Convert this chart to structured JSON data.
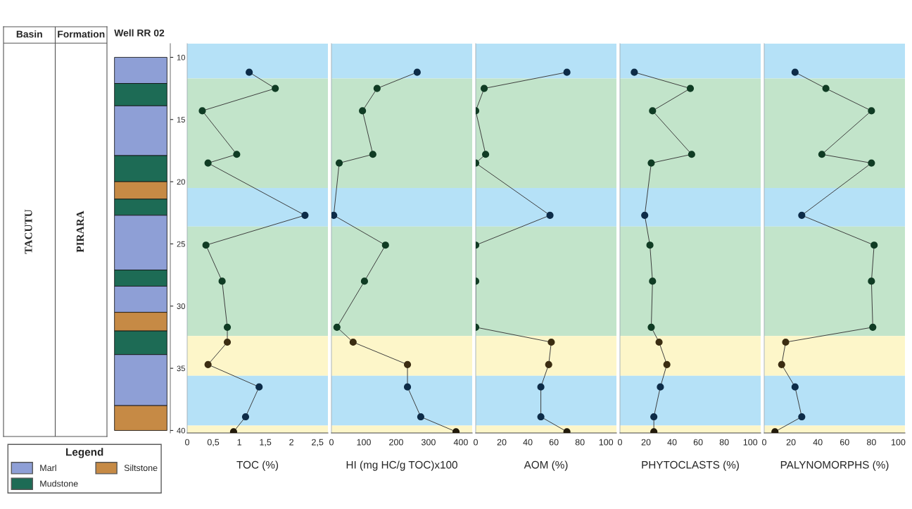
{
  "chart_data": [
    {
      "type": "other",
      "annotations": [
        "Basin",
        "Formation",
        "TACUTU",
        "PIRARA"
      ]
    },
    {
      "type": "bar",
      "title": "Well RR 02",
      "categories": [
        null
      ],
      "ylim": [
        40.2,
        8.9
      ],
      "yticks": [
        10,
        15,
        20,
        25,
        30,
        35,
        40
      ],
      "tick_labels": "y",
      "legend": "bottom",
      "legend_title": "Legend",
      "series": [
        {
          "name": "Marl",
          "color": "#8e9fd6",
          "base": [
            10
          ],
          "values": [
            2.1
          ]
        },
        {
          "name": "Mudstone",
          "color": "#1d6b55",
          "base": [
            12.1
          ],
          "values": [
            1.8
          ]
        },
        {
          "color": "#8e9fd6",
          "base": [
            13.9
          ],
          "values": [
            4.0
          ]
        },
        {
          "color": "#1d6b55",
          "base": [
            17.9
          ],
          "values": [
            2.1
          ]
        },
        {
          "name": "Siltstone",
          "color": "#c68a45",
          "base": [
            20.0
          ],
          "values": [
            1.4
          ]
        },
        {
          "color": "#1d6b55",
          "base": [
            21.4
          ],
          "values": [
            1.3
          ]
        },
        {
          "color": "#8e9fd6",
          "base": [
            22.7
          ],
          "values": [
            4.4
          ]
        },
        {
          "color": "#1d6b55",
          "base": [
            27.1
          ],
          "values": [
            1.3
          ]
        },
        {
          "color": "#8e9fd6",
          "base": [
            28.4
          ],
          "values": [
            2.1
          ]
        },
        {
          "color": "#c68a45",
          "base": [
            30.5
          ],
          "values": [
            1.5
          ]
        },
        {
          "color": "#1d6b55",
          "base": [
            32.0
          ],
          "values": [
            1.9
          ]
        },
        {
          "color": "#8e9fd6",
          "base": [
            33.9
          ],
          "values": [
            4.1
          ]
        },
        {
          "color": "#c68a45",
          "base": [
            38.0
          ],
          "values": [
            2.0
          ]
        }
      ]
    },
    {
      "type": "line",
      "orientation": "horizontal",
      "xlabel": "TOC (%)",
      "xlim": [
        0,
        2.7
      ],
      "xticks": [
        0,
        {
          "value": 0.5,
          "label": "0,5"
        },
        1,
        {
          "value": 1.5,
          "label": "1,5"
        },
        2,
        {
          "value": 2.5,
          "label": "2,5"
        }
      ],
      "ylim": [
        40.2,
        8.9
      ],
      "tick_labels": "x",
      "marker": "circle",
      "line_style": "solid",
      "bands": [
        {
          "axis": "y",
          "from": 8.9,
          "to": 11.7,
          "color": "#b5e1f7"
        },
        {
          "axis": "y",
          "from": 11.7,
          "to": 20.5,
          "color": "#c2e4ca"
        },
        {
          "axis": "y",
          "from": 20.5,
          "to": 23.6,
          "color": "#b5e1f7"
        },
        {
          "axis": "y",
          "from": 23.6,
          "to": 32.4,
          "color": "#c2e4ca"
        },
        {
          "axis": "y",
          "from": 32.4,
          "to": 35.6,
          "color": "#fdf6c9"
        },
        {
          "axis": "y",
          "from": 35.6,
          "to": 39.6,
          "color": "#b5e1f7"
        },
        {
          "axis": "y",
          "from": 39.6,
          "to": 40.2,
          "color": "#fdf6c9"
        }
      ],
      "series": [
        {
          "color": "#3a3a3a",
          "colors": [
            "#0d2c48",
            "#103c24",
            "#103c24",
            "#103c24",
            "#103c24",
            "#0d2c48",
            "#103c24",
            "#103c24",
            "#103c24",
            "#3b2d12",
            "#3b2d12",
            "#0d2c48",
            "#0d2c48",
            "#221a0a"
          ],
          "x": [
            11.2,
            12.5,
            14.3,
            17.8,
            18.5,
            22.7,
            25.1,
            28.0,
            31.7,
            32.9,
            34.7,
            36.5,
            38.9,
            40.1
          ],
          "values": [
            1.19,
            1.69,
            0.29,
            0.95,
            0.4,
            2.26,
            0.36,
            0.67,
            0.77,
            0.77,
            0.4,
            1.38,
            1.12,
            0.89
          ]
        }
      ]
    },
    {
      "type": "line",
      "orientation": "horizontal",
      "xlabel": "HI (mg HC/g TOC)x100",
      "xlim": [
        0,
        435
      ],
      "xticks": [
        0,
        100,
        200,
        300,
        400
      ],
      "ylim": [
        40.2,
        8.9
      ],
      "tick_labels": "x",
      "marker": "circle",
      "line_style": "solid",
      "bands": [
        {
          "axis": "y",
          "from": 8.9,
          "to": 11.7,
          "color": "#b5e1f7"
        },
        {
          "axis": "y",
          "from": 11.7,
          "to": 20.5,
          "color": "#c2e4ca"
        },
        {
          "axis": "y",
          "from": 20.5,
          "to": 23.6,
          "color": "#b5e1f7"
        },
        {
          "axis": "y",
          "from": 23.6,
          "to": 32.4,
          "color": "#c2e4ca"
        },
        {
          "axis": "y",
          "from": 32.4,
          "to": 35.6,
          "color": "#fdf6c9"
        },
        {
          "axis": "y",
          "from": 35.6,
          "to": 39.6,
          "color": "#b5e1f7"
        },
        {
          "axis": "y",
          "from": 39.6,
          "to": 40.2,
          "color": "#fdf6c9"
        }
      ],
      "series": [
        {
          "color": "#3a3a3a",
          "colors": [
            "#0d2c48",
            "#103c24",
            "#103c24",
            "#103c24",
            "#103c24",
            "#0d2c48",
            "#103c24",
            "#103c24",
            "#103c24",
            "#3b2d12",
            "#3b2d12",
            "#0d2c48",
            "#0d2c48",
            "#221a0a"
          ],
          "x": [
            11.2,
            12.5,
            14.3,
            17.8,
            18.5,
            22.7,
            25.1,
            28.0,
            31.7,
            32.9,
            34.7,
            36.5,
            38.9,
            40.1
          ],
          "values": [
            265,
            141,
            96,
            128,
            24,
            7,
            167,
            102,
            17,
            67,
            235,
            235,
            276,
            385
          ]
        }
      ]
    },
    {
      "type": "line",
      "orientation": "horizontal",
      "xlabel": "AOM (%)",
      "xlim": [
        0,
        108
      ],
      "xticks": [
        0,
        20,
        40,
        60,
        80,
        100
      ],
      "ylim": [
        40.2,
        8.9
      ],
      "tick_labels": "x",
      "marker": "circle",
      "line_style": "solid",
      "bands": [
        {
          "axis": "y",
          "from": 8.9,
          "to": 11.7,
          "color": "#b5e1f7"
        },
        {
          "axis": "y",
          "from": 11.7,
          "to": 20.5,
          "color": "#c2e4ca"
        },
        {
          "axis": "y",
          "from": 20.5,
          "to": 23.6,
          "color": "#b5e1f7"
        },
        {
          "axis": "y",
          "from": 23.6,
          "to": 32.4,
          "color": "#c2e4ca"
        },
        {
          "axis": "y",
          "from": 32.4,
          "to": 35.6,
          "color": "#fdf6c9"
        },
        {
          "axis": "y",
          "from": 35.6,
          "to": 39.6,
          "color": "#b5e1f7"
        },
        {
          "axis": "y",
          "from": 39.6,
          "to": 40.2,
          "color": "#fdf6c9"
        }
      ],
      "series": [
        {
          "color": "#3a3a3a",
          "colors": [
            "#0d2c48",
            "#103c24",
            "#103c24",
            "#103c24",
            "#103c24",
            "#0d2c48",
            "#103c24",
            "#103c24",
            "#103c24",
            "#3b2d12",
            "#3b2d12",
            "#0d2c48",
            "#0d2c48",
            "#221a0a"
          ],
          "x": [
            11.2,
            12.5,
            14.3,
            17.8,
            18.5,
            22.7,
            25.1,
            28.0,
            31.7,
            32.9,
            34.7,
            36.5,
            38.9,
            40.1
          ],
          "values": [
            70,
            6.5,
            0,
            7.6,
            0,
            57,
            0,
            0,
            0,
            58,
            56,
            50,
            50,
            70
          ]
        }
      ]
    },
    {
      "type": "line",
      "orientation": "horizontal",
      "xlabel": "PHYTOCLASTS (%)",
      "xlim": [
        0,
        108
      ],
      "xticks": [
        0,
        20,
        40,
        60,
        80,
        100
      ],
      "ylim": [
        40.2,
        8.9
      ],
      "tick_labels": "x",
      "marker": "circle",
      "line_style": "solid",
      "bands": [
        {
          "axis": "y",
          "from": 8.9,
          "to": 11.7,
          "color": "#b5e1f7"
        },
        {
          "axis": "y",
          "from": 11.7,
          "to": 20.5,
          "color": "#c2e4ca"
        },
        {
          "axis": "y",
          "from": 20.5,
          "to": 23.6,
          "color": "#b5e1f7"
        },
        {
          "axis": "y",
          "from": 23.6,
          "to": 32.4,
          "color": "#c2e4ca"
        },
        {
          "axis": "y",
          "from": 32.4,
          "to": 35.6,
          "color": "#fdf6c9"
        },
        {
          "axis": "y",
          "from": 35.6,
          "to": 39.6,
          "color": "#b5e1f7"
        },
        {
          "axis": "y",
          "from": 39.6,
          "to": 40.2,
          "color": "#fdf6c9"
        }
      ],
      "series": [
        {
          "color": "#3a3a3a",
          "colors": [
            "#0d2c48",
            "#103c24",
            "#103c24",
            "#103c24",
            "#103c24",
            "#0d2c48",
            "#103c24",
            "#103c24",
            "#103c24",
            "#3b2d12",
            "#3b2d12",
            "#0d2c48",
            "#0d2c48",
            "#221a0a"
          ],
          "x": [
            11.2,
            12.5,
            14.3,
            17.8,
            18.5,
            22.7,
            25.1,
            28.0,
            31.7,
            32.9,
            34.7,
            36.5,
            38.9,
            40.1
          ],
          "values": [
            11,
            54,
            25,
            55,
            24,
            19,
            23,
            25,
            24,
            30,
            36,
            31,
            26,
            26
          ]
        }
      ]
    },
    {
      "type": "line",
      "orientation": "horizontal",
      "xlabel": "PALYNOMORPHS (%)",
      "xlim": [
        0,
        105
      ],
      "xticks": [
        0,
        20,
        40,
        60,
        80,
        100
      ],
      "ylim": [
        40.2,
        8.9
      ],
      "tick_labels": "x",
      "marker": "circle",
      "line_style": "solid",
      "bands": [
        {
          "axis": "y",
          "from": 8.9,
          "to": 11.7,
          "color": "#b5e1f7"
        },
        {
          "axis": "y",
          "from": 11.7,
          "to": 20.5,
          "color": "#c2e4ca"
        },
        {
          "axis": "y",
          "from": 20.5,
          "to": 23.6,
          "color": "#b5e1f7"
        },
        {
          "axis": "y",
          "from": 23.6,
          "to": 32.4,
          "color": "#c2e4ca"
        },
        {
          "axis": "y",
          "from": 32.4,
          "to": 35.6,
          "color": "#fdf6c9"
        },
        {
          "axis": "y",
          "from": 35.6,
          "to": 39.6,
          "color": "#b5e1f7"
        },
        {
          "axis": "y",
          "from": 39.6,
          "to": 40.2,
          "color": "#fdf6c9"
        }
      ],
      "series": [
        {
          "color": "#3a3a3a",
          "colors": [
            "#0d2c48",
            "#103c24",
            "#103c24",
            "#103c24",
            "#103c24",
            "#0d2c48",
            "#103c24",
            "#103c24",
            "#103c24",
            "#3b2d12",
            "#3b2d12",
            "#0d2c48",
            "#0d2c48",
            "#221a0a"
          ],
          "x": [
            11.2,
            12.5,
            14.3,
            17.8,
            18.5,
            22.7,
            25.1,
            28.0,
            31.7,
            32.9,
            34.7,
            36.5,
            38.9,
            40.1
          ],
          "values": [
            23,
            46,
            80,
            43,
            80,
            28,
            82,
            80,
            81,
            16,
            13,
            23,
            28,
            8
          ]
        }
      ]
    }
  ]
}
